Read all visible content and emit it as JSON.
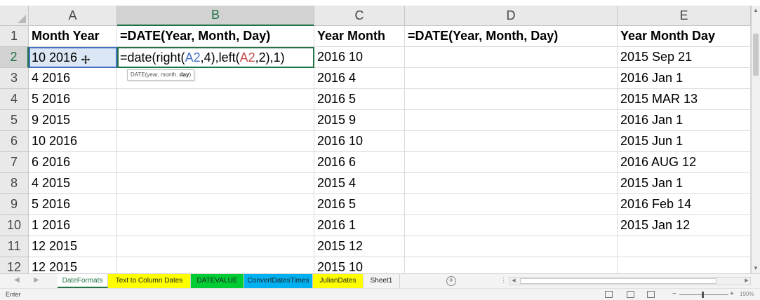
{
  "columns": [
    "A",
    "B",
    "C",
    "D",
    "E"
  ],
  "rows": [
    {
      "num": "1",
      "a": "Month Year",
      "b": "=DATE(Year, Month, Day)",
      "c": "Year Month",
      "d": "=DATE(Year, Month, Day)",
      "e": "Year Month Day"
    },
    {
      "num": "2",
      "a": "10 2016",
      "b": "",
      "c": "2016 10",
      "d": "",
      "e": "2015 Sep 21"
    },
    {
      "num": "3",
      "a": "4 2016",
      "b": "",
      "c": "2016 4",
      "d": "",
      "e": "2016 Jan 1"
    },
    {
      "num": "4",
      "a": "5 2016",
      "b": "",
      "c": "2016 5",
      "d": "",
      "e": "2015 MAR 13"
    },
    {
      "num": "5",
      "a": "9 2015",
      "b": "",
      "c": "2015 9",
      "d": "",
      "e": "2016 Jan 1"
    },
    {
      "num": "6",
      "a": "10 2016",
      "b": "",
      "c": "2016 10",
      "d": "",
      "e": "2015 Jun 1"
    },
    {
      "num": "7",
      "a": "6 2016",
      "b": "",
      "c": "2016 6",
      "d": "",
      "e": "2016 AUG 12"
    },
    {
      "num": "8",
      "a": "4 2015",
      "b": "",
      "c": "2015 4",
      "d": "",
      "e": "2015 Jan 1"
    },
    {
      "num": "9",
      "a": "5 2016",
      "b": "",
      "c": "2016 5",
      "d": "",
      "e": "2016 Feb 14"
    },
    {
      "num": "10",
      "a": "1 2016",
      "b": "",
      "c": "2016 1",
      "d": "",
      "e": "2015 Jan 12"
    },
    {
      "num": "11",
      "a": "12 2015",
      "b": "",
      "c": "2015 12",
      "d": "",
      "e": ""
    },
    {
      "num": "12",
      "a": "12 2015",
      "b": "",
      "c": "2015 10",
      "d": "",
      "e": ""
    }
  ],
  "selected_cell": "A2",
  "editing_cell": {
    "ref": "B2",
    "formula_parts": [
      {
        "text": "=date(right(",
        "style": "normal"
      },
      {
        "text": "A2",
        "style": "ref1"
      },
      {
        "text": ",4),left(",
        "style": "normal"
      },
      {
        "text": "A2",
        "style": "ref2"
      },
      {
        "text": ",2),1)",
        "style": "normal"
      }
    ]
  },
  "tooltip": {
    "prefix": "DATE(year, month, ",
    "current_arg": "day",
    "suffix": ")"
  },
  "sheet_tabs": [
    {
      "label": "DateFormats",
      "color": "#ffffff",
      "active": true
    },
    {
      "label": "Text to Column Dates",
      "color": "#ffff00",
      "active": false
    },
    {
      "label": "DATEVALUE",
      "color": "#00cc33",
      "active": false
    },
    {
      "label": "ConvertDatesTimes",
      "color": "#00b0f0",
      "active": false
    },
    {
      "label": "JulianDates",
      "color": "#ffff00",
      "active": false
    },
    {
      "label": "Sheet1",
      "color": "#f3f3f3",
      "active": false
    }
  ],
  "status": {
    "mode": "Enter",
    "zoom": "190%"
  },
  "colors": {
    "accent": "#217346",
    "selection_border": "#4472c4",
    "ref1": "#4472c4",
    "ref2": "#c0504d"
  },
  "icons": [
    "add-sheet-icon",
    "normal-view-icon",
    "page-layout-icon",
    "page-break-icon",
    "cursor-icon"
  ]
}
